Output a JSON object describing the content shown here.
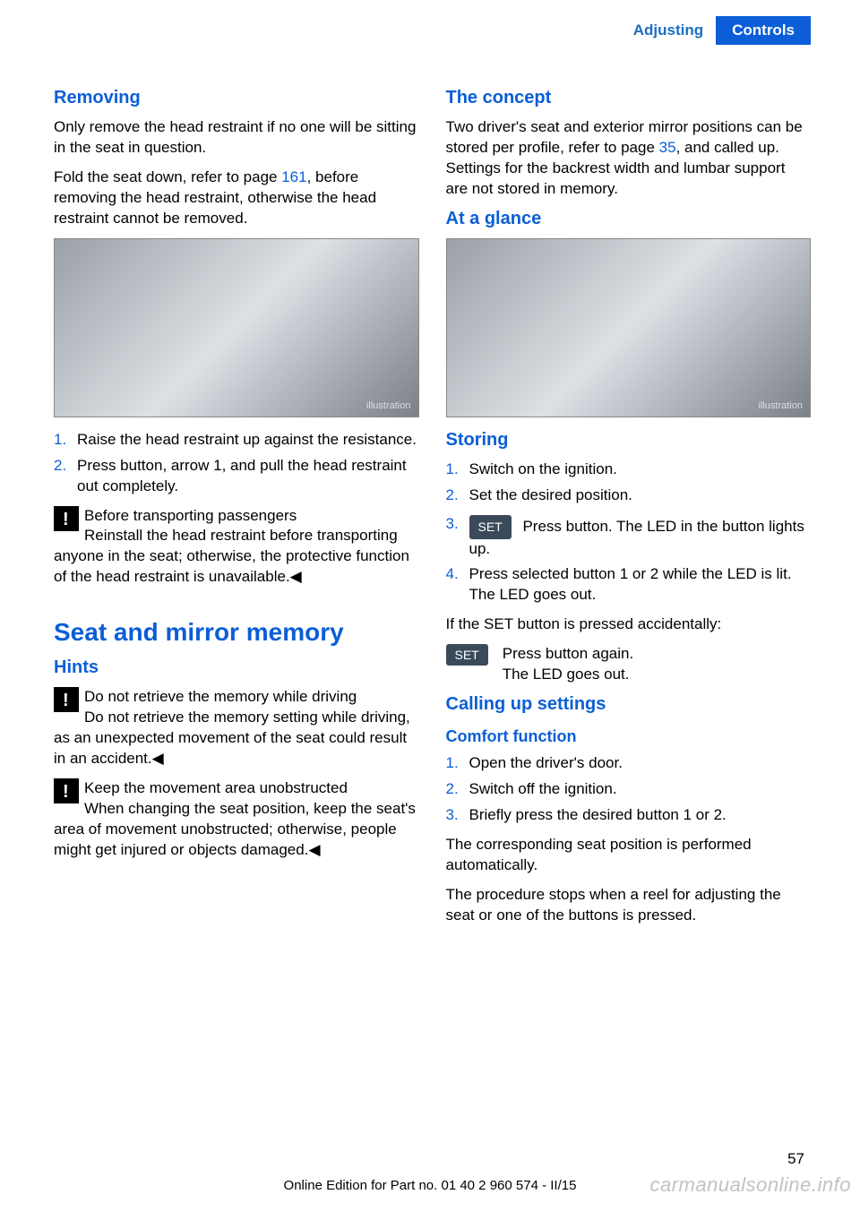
{
  "header": {
    "section": "Adjusting",
    "chapter": "Controls"
  },
  "left": {
    "removing": {
      "title": "Removing",
      "p1a": "Only remove the head restraint if no one will be sitting in the seat in question.",
      "p2a": "Fold the seat down, refer to page ",
      "p2ref": "161",
      "p2b": ", before removing the head restraint, otherwise the head restraint cannot be removed.",
      "steps": [
        "Raise the head restraint up against the re­sistance.",
        "Press button, arrow 1, and pull the head re­straint out completely."
      ],
      "warn_title": "Before transporting passengers",
      "warn_body": "Reinstall the head restraint before trans­porting anyone in the seat; otherwise, the pro­tective function of the head restraint is unavail­able.◀"
    },
    "seat_mirror": {
      "title": "Seat and mirror memory",
      "hints_title": "Hints",
      "warn1_title": "Do not retrieve the memory while driving",
      "warn1_body": "Do not retrieve the memory setting while driving, as an unexpected movement of the seat could result in an accident.◀",
      "warn2_title": "Keep the movement area unobstructed",
      "warn2_body": "When changing the seat position, keep the seat's area of movement unobstructed; otherwise, people might get injured or objects damaged.◀"
    }
  },
  "right": {
    "concept": {
      "title": "The concept",
      "p_a": "Two driver's seat and exterior mirror positions can be stored per profile, refer to page ",
      "p_ref": "35",
      "p_b": ", and called up. Settings for the backrest width and lumbar support are not stored in memory."
    },
    "glance_title": "At a glance",
    "storing": {
      "title": "Storing",
      "s1": "Switch on the ignition.",
      "s2": "Set the desired position.",
      "s3_btn": "SET",
      "s3": "Press button. The LED in the but­ton lights up.",
      "s4": "Press selected button 1 or 2 while the LED is lit. The LED goes out.",
      "accidental": "If the SET button is pressed accidentally:",
      "acc_btn": "SET",
      "acc_line1": "Press button again.",
      "acc_line2": "The LED goes out."
    },
    "calling": {
      "title": "Calling up settings",
      "comfort_title": "Comfort function",
      "c1": "Open the driver's door.",
      "c2": "Switch off the ignition.",
      "c3": "Briefly press the desired button 1 or 2.",
      "p1": "The corresponding seat position is performed automatically.",
      "p2": "The procedure stops when a reel for adjusting the seat or one of the buttons is pressed."
    }
  },
  "page_number": "57",
  "footer": "Online Edition for Part no. 01 40 2 960 574 - II/15",
  "watermark": "carmanualsonline.info"
}
